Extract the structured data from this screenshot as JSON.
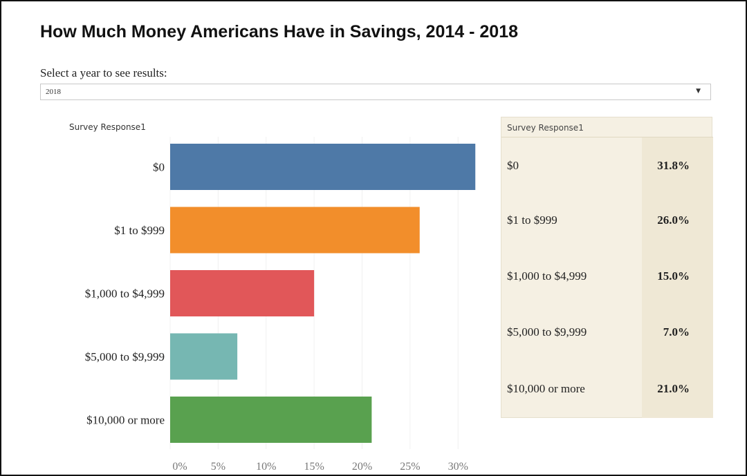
{
  "title": "How Much Money Americans Have in Savings, 2014 - 2018",
  "filter": {
    "label": "Select a year to see results:",
    "selected": "2018",
    "caret_icon": "caret-down-icon"
  },
  "colors": {
    "bar_1": "#4e79a7",
    "bar_2": "#f28e2b",
    "bar_3": "#e15759",
    "bar_4": "#76b7b2",
    "bar_5": "#59a14f",
    "table_bg": "#f5f0e3"
  },
  "chart_data": {
    "type": "bar",
    "orientation": "horizontal",
    "header": "Survey Response1",
    "categories": [
      "$0",
      "$1 to $999",
      "$1,000 to $4,999",
      "$5,000 to $9,999",
      "$10,000 or more"
    ],
    "values": [
      31.8,
      26.0,
      15.0,
      7.0,
      21.0
    ],
    "unit": "%",
    "xlim": [
      0,
      32
    ],
    "xticks": [
      "0%",
      "5%",
      "10%",
      "15%",
      "20%",
      "25%",
      "30%"
    ],
    "xtick_values": [
      0,
      5,
      10,
      15,
      20,
      25,
      30
    ],
    "grid": true,
    "legend": "none"
  },
  "table": {
    "header": "Survey Response1",
    "rows": [
      {
        "category": "$0",
        "value": "31.8%"
      },
      {
        "category": "$1 to $999",
        "value": "26.0%"
      },
      {
        "category": "$1,000 to $4,999",
        "value": "15.0%"
      },
      {
        "category": "$5,000 to $9,999",
        "value": "7.0%"
      },
      {
        "category": "$10,000 or more",
        "value": "21.0%"
      }
    ]
  }
}
